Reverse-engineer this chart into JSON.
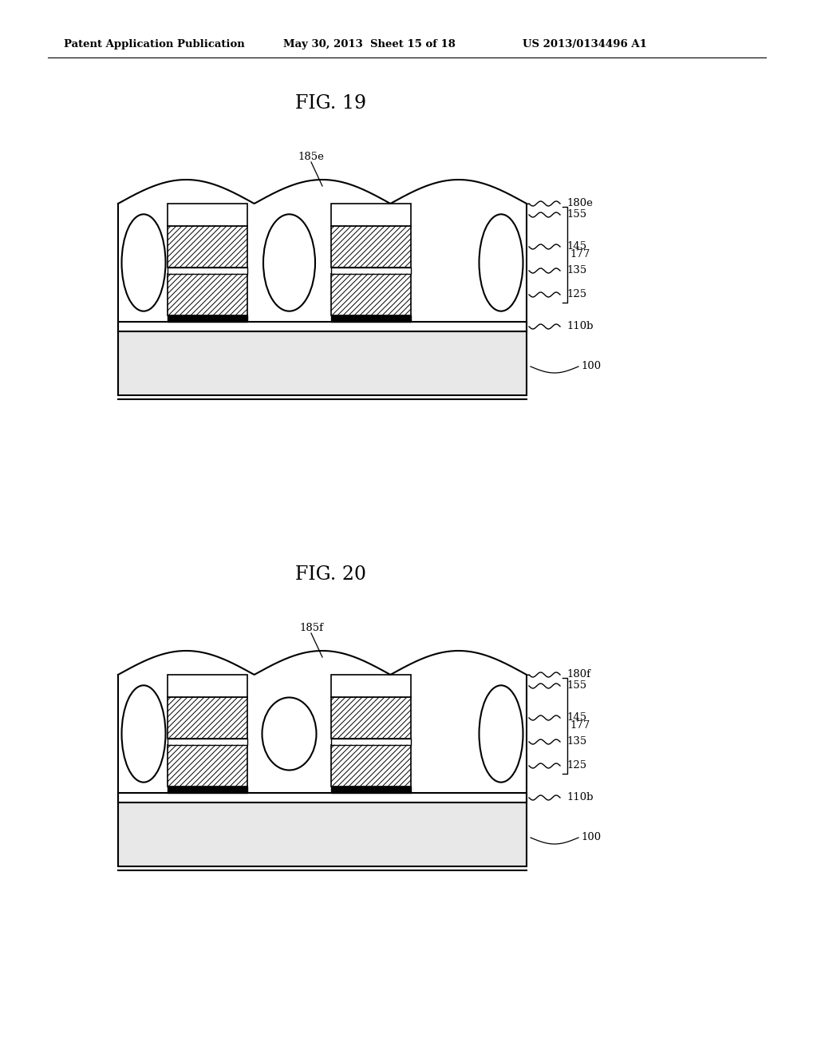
{
  "header_left": "Patent Application Publication",
  "header_mid": "May 30, 2013  Sheet 15 of 18",
  "header_right": "US 2013/0134496 A1",
  "fig19_title": "FIG. 19",
  "fig20_title": "FIG. 20",
  "bg_color": "#ffffff",
  "line_color": "#000000",
  "label_fontsize": 9.5,
  "header_fontsize": 9.5,
  "title_fontsize": 17,
  "fig19_label": "185e",
  "fig20_label": "185f",
  "right_labels": [
    "180e",
    "155",
    "145",
    "135",
    "125",
    "110b"
  ],
  "right_labels2": [
    "180f",
    "155",
    "145",
    "135",
    "125",
    "110b"
  ],
  "bracket_label": "177"
}
